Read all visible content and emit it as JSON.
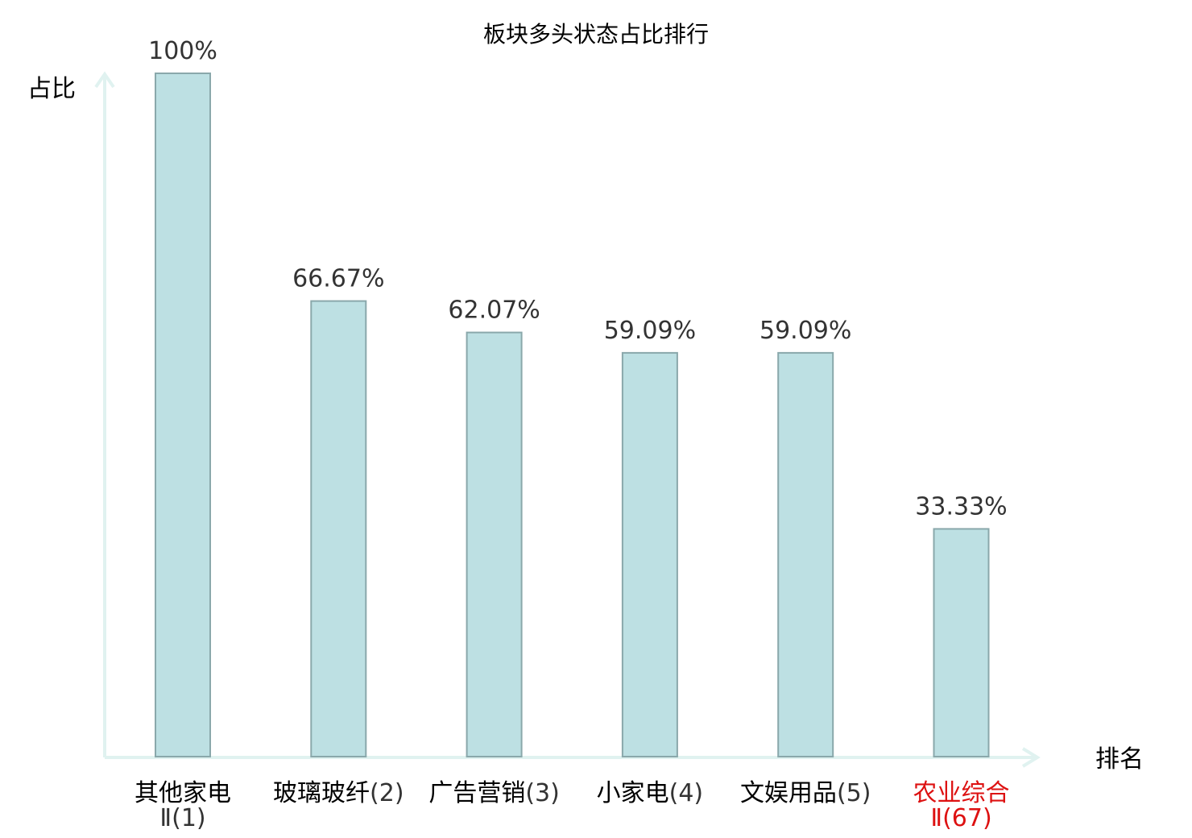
{
  "chart_data": {
    "type": "bar",
    "title": "板块多头状态占比排行",
    "xlabel": "排名",
    "ylabel": "占比",
    "ylim": [
      0,
      100
    ],
    "grid": false,
    "categories": [
      {
        "name": "其他家电",
        "rank": "Ⅱ(1)",
        "highlight": false
      },
      {
        "name": "玻璃玻纤",
        "rank": "(2)",
        "highlight": false
      },
      {
        "name": "广告营销",
        "rank": "(3)",
        "highlight": false
      },
      {
        "name": "小家电",
        "rank": "(4)",
        "highlight": false
      },
      {
        "name": "文娱用品",
        "rank": "(5)",
        "highlight": false
      },
      {
        "name": "农业综合",
        "rank": "Ⅱ(67)",
        "highlight": true
      }
    ],
    "values": [
      100,
      66.67,
      62.07,
      59.09,
      59.09,
      33.33
    ],
    "value_labels": [
      "100%",
      "66.67%",
      "62.07%",
      "59.09%",
      "59.09%",
      "33.33%"
    ],
    "colors": {
      "bar_fill": "#bde0e3",
      "bar_stroke": "#8aa8ab",
      "axis": "#e0f2f0",
      "text": "#000000",
      "value_text": "#333333",
      "rank_text": "#333333",
      "highlight": "#dd1111"
    }
  }
}
